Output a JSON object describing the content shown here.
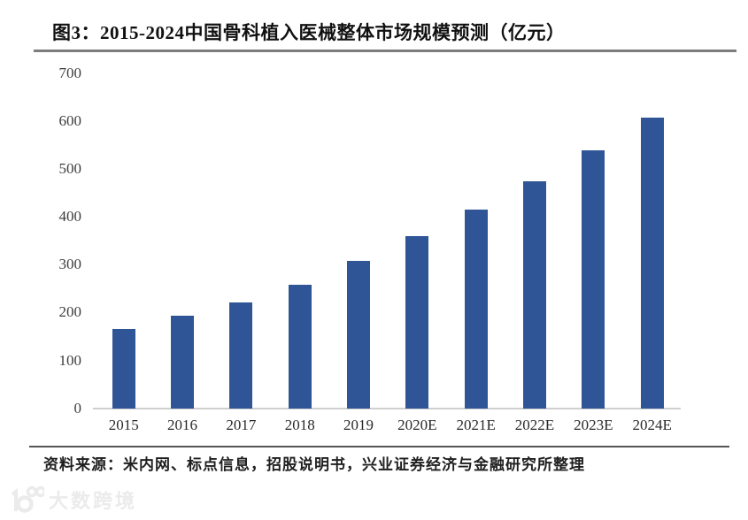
{
  "header": {
    "title": "图3：2015-2024中国骨科植入医械整体市场规模预测（亿元）"
  },
  "chart_data": {
    "type": "bar",
    "title": "2015-2024中国骨科植入医械整体市场规模预测",
    "unit_label": "亿元",
    "categories": [
      "2015",
      "2016",
      "2017",
      "2018",
      "2019",
      "2020E",
      "2021E",
      "2022E",
      "2023E",
      "2024E"
    ],
    "values": [
      166,
      193,
      222,
      258,
      308,
      360,
      415,
      475,
      538,
      607
    ],
    "xlabel": "",
    "ylabel": "",
    "ylim": [
      0,
      700
    ],
    "yticks": [
      0,
      100,
      200,
      300,
      400,
      500,
      600,
      700
    ],
    "bar_color": "#2F5597",
    "axis_line_color": "#cfcfcf",
    "grid": false,
    "legend_position": "none"
  },
  "footer": {
    "source": "资料来源：米内网、标点信息，招股说明书，兴业证券经济与金融研究所整理"
  },
  "watermark": {
    "text": "大数跨境",
    "logo": "10100-logo",
    "color": "#ebebeb"
  }
}
